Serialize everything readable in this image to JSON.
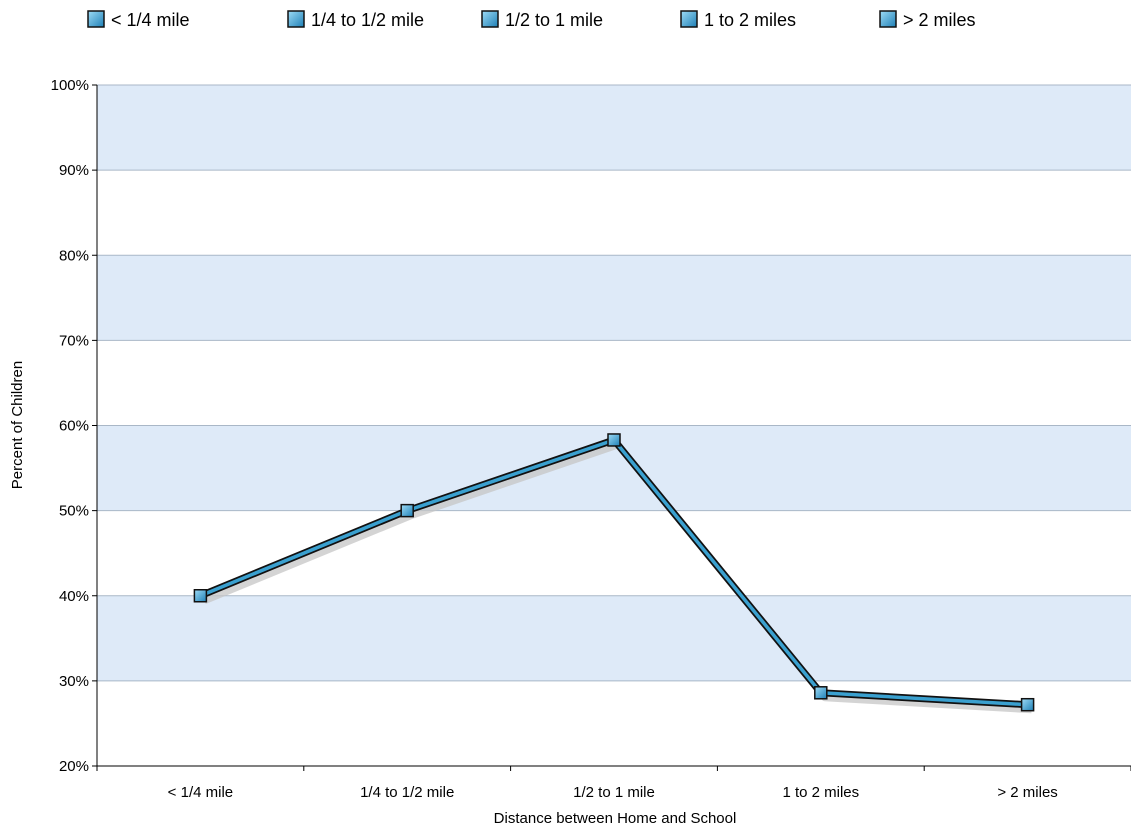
{
  "chart_data": {
    "type": "line",
    "categories": [
      "< 1/4 mile",
      "1/4 to 1/2 mile",
      "1/2 to 1 mile",
      "1 to 2 miles",
      "> 2 miles"
    ],
    "series": [
      {
        "values": [
          40,
          50,
          58.3,
          28.6,
          27.2
        ]
      }
    ],
    "legend": {
      "placement": "top",
      "entries": [
        "< 1/4 mile",
        "1/4 to 1/2 mile",
        "1/2 to 1 mile",
        "1 to 2 miles",
        "> 2 miles"
      ]
    },
    "xlabel": "Distance between Home and School",
    "ylabel": "Percent of Children",
    "ylim": [
      20,
      100
    ],
    "yticks": [
      20,
      30,
      40,
      50,
      60,
      70,
      80,
      90,
      100
    ],
    "ytick_labels": [
      "20%",
      "30%",
      "40%",
      "50%",
      "60%",
      "70%",
      "80%",
      "90%",
      "100%"
    ],
    "grid": true,
    "colors": {
      "line": "#3aa0cf",
      "line_outline": "#111111",
      "band": "#deeaf8",
      "gridline": "#a9b7c7",
      "marker_fill": "#3aa7dc"
    }
  }
}
